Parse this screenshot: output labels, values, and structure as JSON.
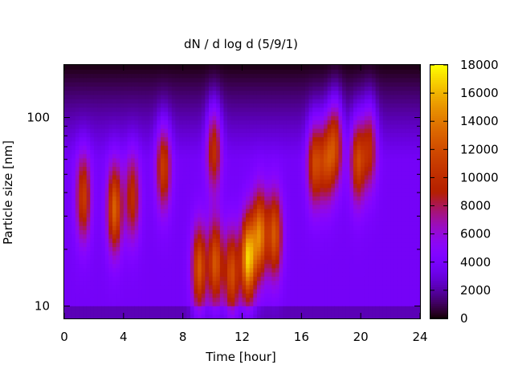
{
  "chart_data": {
    "type": "heatmap",
    "title": "dN / d log d (5/9/1)",
    "xlabel": "Time [hour]",
    "ylabel": "Particle size [nm]",
    "x_range": [
      0,
      24
    ],
    "x_ticks": [
      "0",
      "4",
      "8",
      "12",
      "16",
      "20",
      "24"
    ],
    "y_scale": "log",
    "y_range_nm": [
      8.6,
      190
    ],
    "y_ticks": [
      "10",
      "100"
    ],
    "colorbar": {
      "range": [
        0,
        18000
      ],
      "ticks": [
        "0",
        "2000",
        "4000",
        "6000",
        "8000",
        "10000",
        "12000",
        "14000",
        "16000",
        "18000"
      ],
      "colormap": "gnuplot-hot (black-purple-red-yellow)"
    },
    "background_level": 3800,
    "hotspots": [
      {
        "time_h": 1.3,
        "size_nm": 38,
        "peak": 11000
      },
      {
        "time_h": 3.4,
        "size_nm": 33,
        "peak": 13000
      },
      {
        "time_h": 4.6,
        "size_nm": 38,
        "peak": 10000
      },
      {
        "time_h": 6.7,
        "size_nm": 55,
        "peak": 11000
      },
      {
        "time_h": 9.1,
        "size_nm": 16,
        "peak": 12500
      },
      {
        "time_h": 10.1,
        "size_nm": 70,
        "peak": 10500
      },
      {
        "time_h": 10.2,
        "size_nm": 17,
        "peak": 12500
      },
      {
        "time_h": 11.3,
        "size_nm": 15,
        "peak": 12000
      },
      {
        "time_h": 12.4,
        "size_nm": 18,
        "peak": 16500
      },
      {
        "time_h": 13.2,
        "size_nm": 24,
        "peak": 14000
      },
      {
        "time_h": 14.2,
        "size_nm": 24,
        "peak": 12500
      },
      {
        "time_h": 16.9,
        "size_nm": 58,
        "peak": 11500
      },
      {
        "time_h": 17.7,
        "size_nm": 60,
        "peak": 10500
      },
      {
        "time_h": 18.3,
        "size_nm": 75,
        "peak": 11000
      },
      {
        "time_h": 19.8,
        "size_nm": 60,
        "peak": 11500
      },
      {
        "time_h": 20.6,
        "size_nm": 72,
        "peak": 10000
      }
    ]
  }
}
